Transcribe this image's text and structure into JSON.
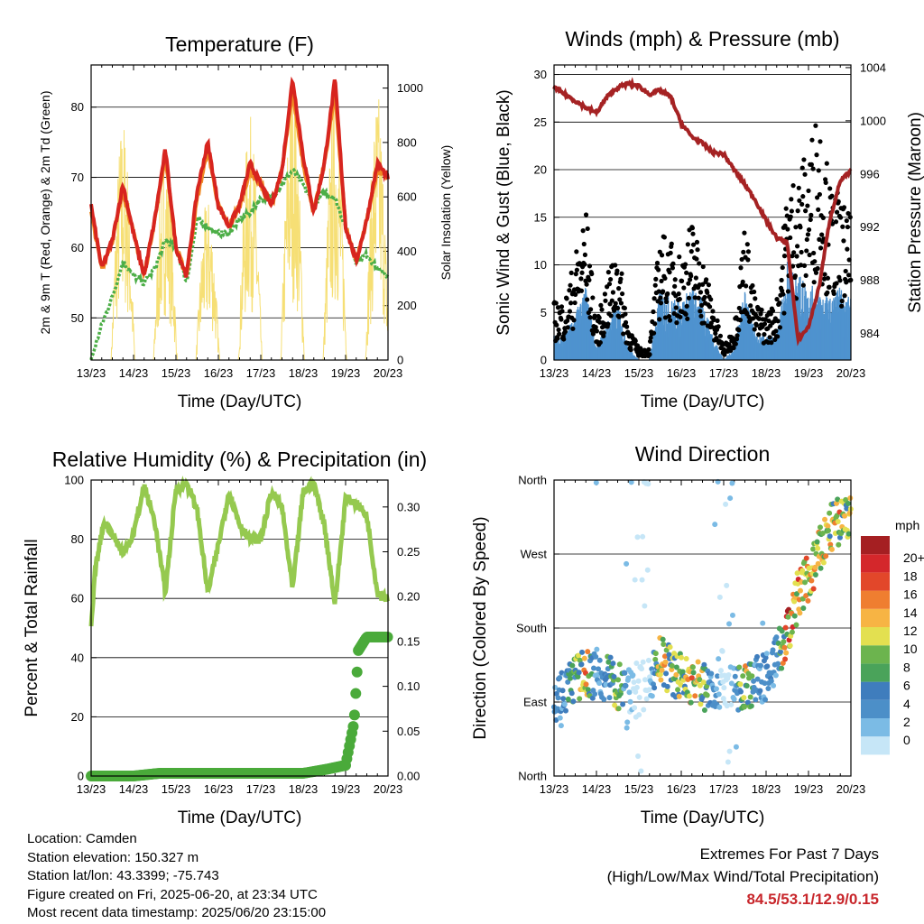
{
  "x_ticks": [
    "13/23",
    "14/23",
    "15/23",
    "16/23",
    "17/23",
    "18/23",
    "19/23",
    "20/23"
  ],
  "chart_data": [
    {
      "id": "temperature",
      "type": "line",
      "title": "Temperature (F)",
      "xlabel": "Time (Day/UTC)",
      "ylabel": "2m & 9m T (Red, Orange) & 2m Td (Green)",
      "ylabel_right": "Solar Insolation (Yellow)",
      "ylim": [
        44,
        86
      ],
      "ylim_right": [
        0,
        1085
      ],
      "yticks": [
        50,
        60,
        70,
        80
      ],
      "yticks_right": [
        0,
        200,
        400,
        600,
        800,
        1000
      ],
      "x_days": [
        0,
        0.25,
        0.5,
        0.75,
        1.0,
        1.25,
        1.5,
        1.75,
        2.0,
        2.25,
        2.5,
        2.75,
        3.0,
        3.25,
        3.5,
        3.75,
        4.0,
        4.25,
        4.5,
        4.75,
        5.0,
        5.25,
        5.5,
        5.75,
        6.0,
        6.25,
        6.5,
        6.75,
        7.0
      ],
      "series": [
        {
          "name": "2m T",
          "color": "#d7251f",
          "values": [
            66,
            57,
            61,
            69,
            62,
            56,
            64,
            74,
            60,
            56,
            68,
            75,
            66,
            63,
            66,
            72,
            69,
            66,
            71,
            84,
            73,
            65,
            72,
            84,
            63,
            58,
            64,
            72,
            70
          ]
        },
        {
          "name": "9m T",
          "color": "#f08a24",
          "values": [
            65,
            57,
            61,
            68,
            62,
            56,
            64,
            73,
            60,
            56,
            67,
            74,
            66,
            63,
            66,
            71,
            69,
            66,
            71,
            82,
            72,
            65,
            72,
            82,
            63,
            58,
            64,
            71,
            70
          ]
        },
        {
          "name": "2m Td",
          "color": "#4cae47",
          "values": [
            44,
            49,
            53,
            58,
            56,
            55,
            57,
            61,
            60,
            55,
            64,
            63,
            62,
            62,
            64,
            65,
            67,
            67,
            69,
            71,
            69,
            66,
            68,
            67,
            63,
            58,
            59,
            57,
            56
          ]
        },
        {
          "name": "Solar Insolation",
          "color": "#f6df75",
          "axis": "right",
          "values": [
            0,
            0,
            0,
            900,
            0,
            0,
            0,
            800,
            0,
            0,
            0,
            600,
            0,
            0,
            0,
            900,
            0,
            0,
            0,
            1050,
            0,
            0,
            0,
            1000,
            0,
            0,
            0,
            1000,
            0
          ]
        }
      ]
    },
    {
      "id": "winds",
      "type": "scatter",
      "title": "Winds (mph) & Pressure (mb)",
      "xlabel": "Time (Day/UTC)",
      "ylabel": "Sonic Wind & Gust (Blue, Black)",
      "ylabel_right": "Station Pressure (Maroon)",
      "ylim": [
        0,
        31
      ],
      "ylim_right": [
        982,
        1004.2
      ],
      "yticks": [
        0,
        5,
        10,
        15,
        20,
        25,
        30
      ],
      "yticks_right": [
        984,
        988,
        992,
        996,
        1000,
        1004
      ],
      "series": [
        {
          "name": "Sonic Wind",
          "color": "#4f93cf",
          "x": [
            0,
            0.25,
            0.5,
            0.75,
            1.0,
            1.25,
            1.5,
            1.75,
            2.0,
            2.25,
            2.5,
            2.75,
            3.0,
            3.25,
            3.5,
            3.75,
            4.0,
            4.25,
            4.5,
            4.75,
            5.0,
            5.25,
            5.5,
            5.75,
            6.0,
            6.25,
            6.5,
            6.75,
            7.0
          ],
          "values": [
            2,
            2,
            4,
            6,
            1,
            3,
            5,
            1,
            0,
            0,
            6,
            5,
            5,
            6,
            5,
            2,
            0,
            1,
            6,
            2,
            2,
            2,
            8,
            7,
            6,
            6,
            5,
            6,
            5
          ]
        },
        {
          "name": "Gust",
          "color": "#000000",
          "x": [
            0,
            0.25,
            0.5,
            0.75,
            1.0,
            1.25,
            1.5,
            1.75,
            2.0,
            2.25,
            2.5,
            2.75,
            3.0,
            3.25,
            3.5,
            3.75,
            4.0,
            4.25,
            4.5,
            4.75,
            5.0,
            5.25,
            5.5,
            5.75,
            6.0,
            6.25,
            6.5,
            6.75,
            7.0
          ],
          "values": [
            5,
            5,
            9,
            13,
            3,
            7,
            10,
            3,
            1,
            1,
            11,
            10,
            9,
            12,
            9,
            5,
            1,
            3,
            12,
            5,
            4,
            5,
            15,
            16,
            18,
            22,
            15,
            14,
            12
          ]
        },
        {
          "name": "Station Pressure",
          "color": "#a52223",
          "axis": "right",
          "x": [
            0,
            0.25,
            0.5,
            0.75,
            1.0,
            1.25,
            1.5,
            1.75,
            2.0,
            2.25,
            2.5,
            2.75,
            3.0,
            3.25,
            3.5,
            3.75,
            4.0,
            4.25,
            4.5,
            4.75,
            5.0,
            5.25,
            5.5,
            5.75,
            6.0,
            6.25,
            6.5,
            6.75,
            7.0
          ],
          "values": [
            1002.5,
            1002.0,
            1001.5,
            1001.0,
            1000.6,
            1001.8,
            1002.5,
            1002.8,
            1002.6,
            1002.0,
            1002.3,
            1001.8,
            999.8,
            998.8,
            998.3,
            997.6,
            997.5,
            996.3,
            995.2,
            994.0,
            992.5,
            991.2,
            990.8,
            983.5,
            984.5,
            987.5,
            992.5,
            995.5,
            996.2
          ]
        }
      ]
    },
    {
      "id": "humidity",
      "type": "scatter",
      "title": "Relative Humidity (%) & Precipitation (in)",
      "xlabel": "Time (Day/UTC)",
      "ylabel": "Percent & Total Rainfall",
      "ylim": [
        0,
        100
      ],
      "ylim_right": [
        0,
        0.33
      ],
      "yticks": [
        0,
        20,
        40,
        60,
        80,
        100
      ],
      "yticks_right": [
        "0.00",
        "0.05",
        "0.10",
        "0.15",
        "0.20",
        "0.25",
        "0.30"
      ],
      "series": [
        {
          "name": "Relative Humidity",
          "color": "#95c94f",
          "x": [
            0,
            0.1,
            0.3,
            0.5,
            0.75,
            1.0,
            1.25,
            1.5,
            1.75,
            2.0,
            2.25,
            2.5,
            2.75,
            3.0,
            3.25,
            3.5,
            3.75,
            4.0,
            4.25,
            4.5,
            4.75,
            5.0,
            5.25,
            5.5,
            5.75,
            6.0,
            6.25,
            6.5,
            6.75,
            7.0
          ],
          "values": [
            50,
            70,
            86,
            82,
            75,
            82,
            98,
            86,
            62,
            97,
            99,
            90,
            62,
            78,
            96,
            85,
            80,
            80,
            96,
            91,
            63,
            96,
            99,
            85,
            58,
            94,
            92,
            88,
            62,
            60
          ]
        },
        {
          "name": "Total Precipitation",
          "color": "#4aaa3a",
          "axis": "right",
          "x": [
            0,
            0.5,
            1.0,
            1.6,
            2.0,
            3.0,
            4.0,
            5.0,
            5.6,
            6.0,
            6.2,
            6.3,
            6.5,
            7.0
          ],
          "values": [
            0,
            0,
            0,
            0.003,
            0.003,
            0.003,
            0.003,
            0.003,
            0.008,
            0.012,
            0.06,
            0.14,
            0.155,
            0.155
          ]
        }
      ]
    },
    {
      "id": "wind_direction",
      "type": "scatter",
      "title": "Wind Direction",
      "xlabel": "Time (Day/UTC)",
      "ylabel": "Direction (Colored By Speed)",
      "yticks": [
        "North",
        "East",
        "South",
        "West",
        "North"
      ],
      "ylim": [
        0,
        360
      ],
      "colorbar_title": "mph",
      "colorbar_labels": [
        "0",
        "2",
        "4",
        "6",
        "8",
        "10",
        "12",
        "14",
        "16",
        "18",
        "20+"
      ],
      "colorbar_colors": [
        "#c6e6f7",
        "#7bbbe5",
        "#4c8fc8",
        "#3f7dbd",
        "#4aa35a",
        "#6cb44e",
        "#e3e050",
        "#f7b444",
        "#ef7e30",
        "#e2472a",
        "#d4272b",
        "#a51f22"
      ],
      "series": [
        {
          "name": "Direction",
          "x": [
            0,
            0.5,
            1.0,
            1.5,
            2.0,
            2.5,
            3.0,
            3.5,
            4.0,
            4.5,
            5.0,
            5.5,
            5.75,
            6.0,
            6.25,
            6.5,
            6.75,
            7.0
          ],
          "values": [
            90,
            120,
            125,
            110,
            100,
            140,
            120,
            110,
            110,
            110,
            120,
            170,
            220,
            240,
            270,
            300,
            310,
            320
          ]
        }
      ]
    }
  ],
  "footer": {
    "location": "Location: Camden",
    "elevation": "Station elevation: 150.327 m",
    "latlon": "Station lat/lon: 43.3399; -75.743",
    "created": "Figure created on Fri, 2025-06-20, at 23:34 UTC",
    "recent": "Most recent data timestamp: 2025/06/20 23:15:00",
    "extremes_title": "Extremes For Past 7 Days",
    "extremes_sub": "(High/Low/Max Wind/Total Precipitation)",
    "extremes_value": "84.5/53.1/12.9/0.15"
  }
}
